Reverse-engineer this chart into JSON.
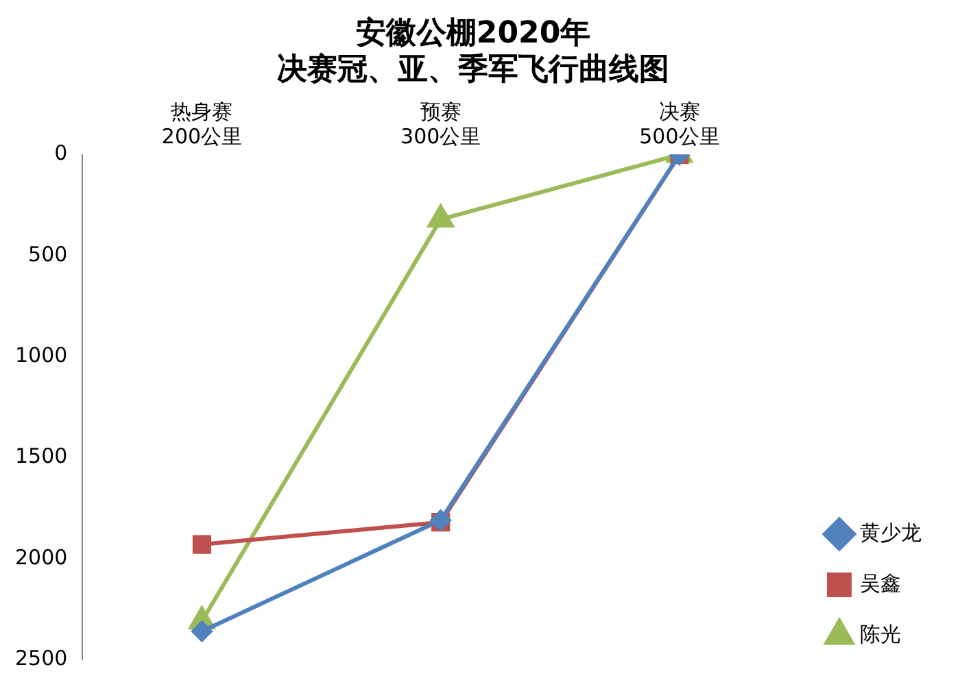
{
  "chart_data": {
    "type": "line",
    "title": "安徽公棚2020年",
    "subtitle": "决赛冠、亚、季军飞行曲线图",
    "categories": [
      "热身赛\n200公里",
      "预赛\n300公里",
      "决赛\n500公里"
    ],
    "series": [
      {
        "name": "黄少龙",
        "color": "#4f81bd",
        "marker": "diamond",
        "values": [
          2360,
          1810,
          0
        ]
      },
      {
        "name": "吴鑫",
        "color": "#c0504d",
        "marker": "square",
        "values": [
          1930,
          1820,
          0
        ]
      },
      {
        "name": "陈光",
        "color": "#9bbb59",
        "marker": "triangle",
        "values": [
          2310,
          320,
          0
        ]
      }
    ],
    "ylim": [
      2500,
      0
    ],
    "yticks": [
      0,
      500,
      1000,
      1500,
      2000,
      2500
    ],
    "grid": false,
    "legend": "right"
  }
}
